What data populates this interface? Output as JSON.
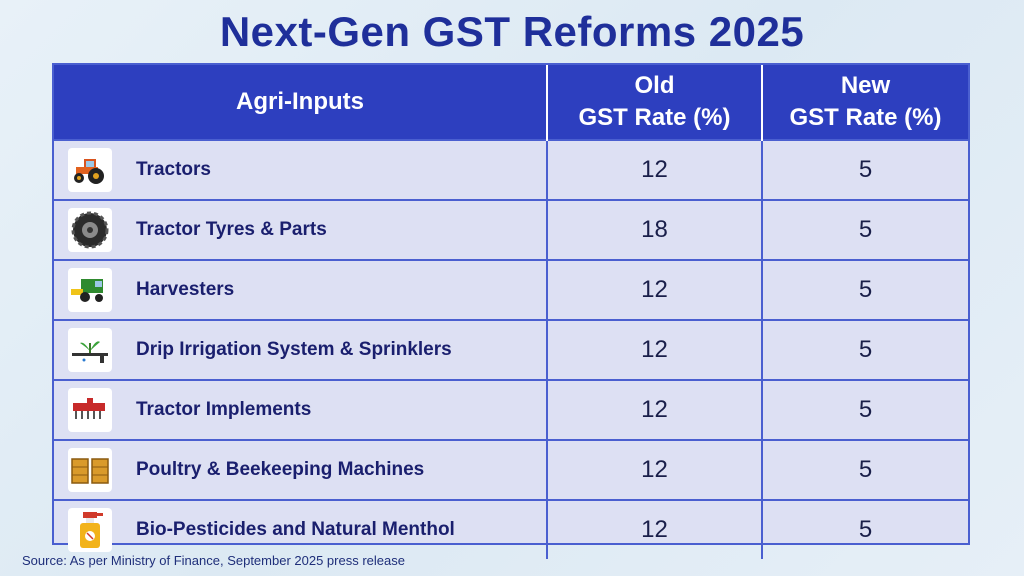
{
  "title": "Next-Gen GST Reforms 2025",
  "header": {
    "col1": "Agri-Inputs",
    "col2_line1": "Old",
    "col2_line2": "GST Rate (%)",
    "col3_line1": "New",
    "col3_line2": "GST Rate (%)"
  },
  "rows": [
    {
      "icon": "tractor-icon",
      "label": "Tractors",
      "old": "12",
      "new": "5"
    },
    {
      "icon": "tyre-icon",
      "label": "Tractor Tyres & Parts",
      "old": "18",
      "new": "5"
    },
    {
      "icon": "harvester-icon",
      "label": "Harvesters",
      "old": "12",
      "new": "5"
    },
    {
      "icon": "drip-irrigation-icon",
      "label": "Drip Irrigation System & Sprinklers",
      "old": "12",
      "new": "5"
    },
    {
      "icon": "tractor-implement-icon",
      "label": "Tractor Implements",
      "old": "12",
      "new": "5"
    },
    {
      "icon": "beehive-icon",
      "label": "Poultry & Beekeeping Machines",
      "old": "12",
      "new": "5"
    },
    {
      "icon": "spray-bottle-icon",
      "label": "Bio-Pesticides and Natural Menthol",
      "old": "12",
      "new": "5"
    }
  ],
  "source": "Source: As per Ministry of Finance, September 2025 press release"
}
